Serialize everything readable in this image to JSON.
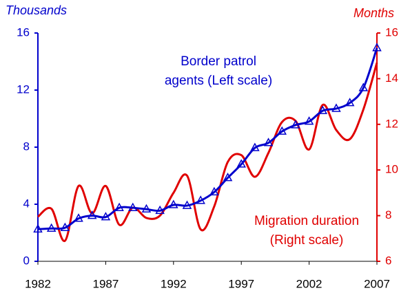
{
  "chart_data": {
    "type": "line",
    "y_label": "Thousands",
    "y2_label": "Months",
    "x": [
      1982,
      1983,
      1984,
      1985,
      1986,
      1987,
      1988,
      1989,
      1990,
      1991,
      1992,
      1993,
      1994,
      1995,
      1996,
      1997,
      1998,
      1999,
      2000,
      2001,
      2002,
      2003,
      2004,
      2005,
      2006,
      2007
    ],
    "xlim": [
      1982,
      2007
    ],
    "xticks": [
      1982,
      1987,
      1992,
      1997,
      2002,
      2007
    ],
    "ylim": [
      0,
      16
    ],
    "yticks": [
      0,
      4,
      8,
      12,
      16
    ],
    "y2lim": [
      6,
      16
    ],
    "y2ticks": [
      6,
      8,
      10,
      12,
      14,
      16
    ],
    "series": [
      {
        "name": "Border patrol agents",
        "color": "#0000cc",
        "marker": "triangle",
        "values": [
          2.25,
          2.3,
          2.35,
          3.0,
          3.2,
          3.1,
          3.75,
          3.75,
          3.65,
          3.55,
          3.95,
          3.9,
          4.25,
          4.85,
          5.85,
          6.8,
          7.95,
          8.3,
          9.1,
          9.55,
          9.8,
          10.55,
          10.7,
          11.1,
          12.15,
          14.95
        ]
      },
      {
        "name": "Migration duration",
        "color": "#e00000",
        "axis": "y2",
        "values": [
          7.95,
          8.3,
          6.9,
          9.3,
          8.1,
          9.3,
          7.6,
          8.35,
          7.9,
          8.0,
          9.0,
          9.75,
          7.4,
          8.4,
          10.35,
          10.65,
          9.7,
          10.75,
          12.1,
          12.15,
          10.9,
          12.85,
          11.75,
          11.35,
          12.65,
          14.7
        ]
      }
    ],
    "annotations": [
      {
        "lines": [
          "Border patrol",
          "agents (Left scale)"
        ],
        "color": "#0000cc"
      },
      {
        "lines": [
          "Migration duration",
          "(Right scale)"
        ],
        "color": "#e00000"
      }
    ]
  }
}
